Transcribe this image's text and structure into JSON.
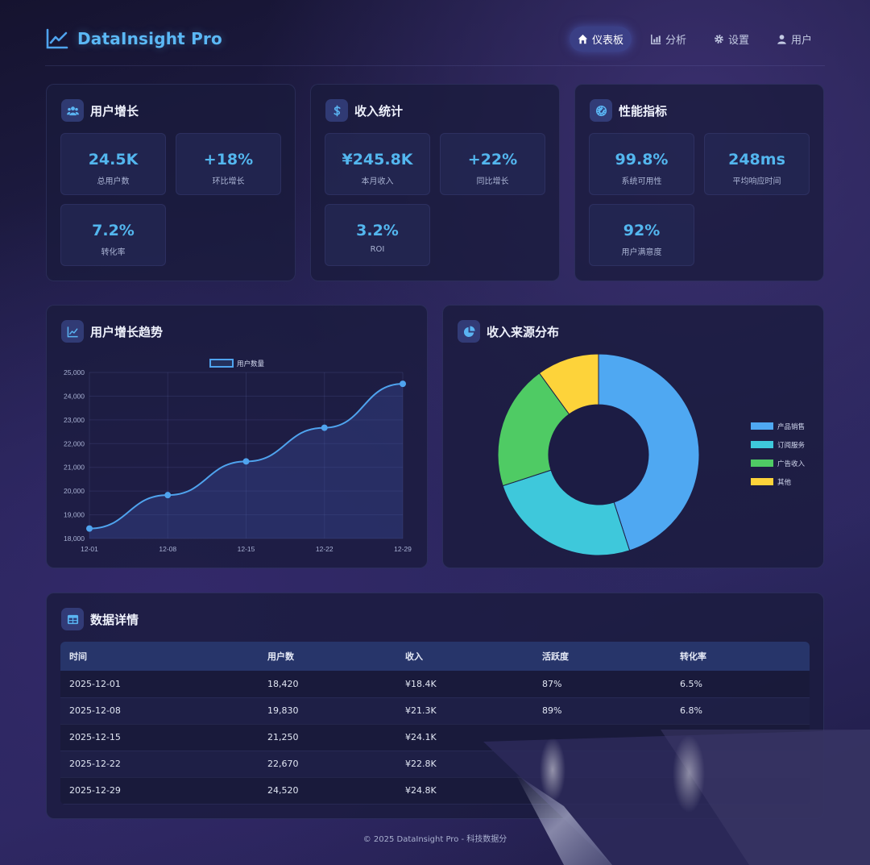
{
  "app": {
    "name": "DataInsight Pro"
  },
  "nav": [
    {
      "label": "仪表板",
      "icon": "home-icon",
      "active": true
    },
    {
      "label": "分析",
      "icon": "chart-bar-icon",
      "active": false
    },
    {
      "label": "设置",
      "icon": "gear-icon",
      "active": false
    },
    {
      "label": "用户",
      "icon": "user-icon",
      "active": false
    }
  ],
  "cards": {
    "user_growth": {
      "title": "用户增长",
      "icon": "users-icon",
      "stats": [
        {
          "value": "24.5K",
          "label": "总用户数"
        },
        {
          "value": "+18%",
          "label": "环比增长"
        },
        {
          "value": "7.2%",
          "label": "转化率"
        }
      ]
    },
    "revenue": {
      "title": "收入统计",
      "icon": "dollar-icon",
      "stats": [
        {
          "value": "¥245.8K",
          "label": "本月收入"
        },
        {
          "value": "+22%",
          "label": "同比增长"
        },
        {
          "value": "3.2%",
          "label": "ROI"
        }
      ]
    },
    "performance": {
      "title": "性能指标",
      "icon": "gauge-icon",
      "stats": [
        {
          "value": "99.8%",
          "label": "系统可用性"
        },
        {
          "value": "248ms",
          "label": "平均响应时间"
        },
        {
          "value": "92%",
          "label": "用户满意度"
        }
      ]
    }
  },
  "charts": {
    "line_title": "用户增长趋势",
    "pie_title": "收入来源分布"
  },
  "chart_data": [
    {
      "type": "line",
      "x": [
        "12-01",
        "12-08",
        "12-15",
        "12-22",
        "12-29"
      ],
      "series": [
        {
          "name": "用户数量",
          "values": [
            18420,
            19830,
            21250,
            22670,
            24520
          ],
          "color": "#4fa3ee"
        }
      ],
      "yticks": [
        "18,000",
        "19,000",
        "20,000",
        "21,000",
        "22,000",
        "23,000",
        "24,000",
        "25,000"
      ],
      "ylim": [
        18000,
        25000
      ],
      "grid": true,
      "legend": "top-center"
    },
    {
      "type": "pie",
      "categories": [
        "产品销售",
        "订阅服务",
        "广告收入",
        "其他"
      ],
      "values": [
        45,
        25,
        20,
        10
      ],
      "colors": [
        "#4fa8f2",
        "#3ec8db",
        "#4fcb64",
        "#fdd33a"
      ],
      "legend": "right"
    }
  ],
  "table": {
    "title": "数据详情",
    "icon": "table-icon",
    "columns": [
      "时间",
      "用户数",
      "收入",
      "活跃度",
      "转化率"
    ],
    "rows": [
      [
        "2025-12-01",
        "18,420",
        "¥18.4K",
        "87%",
        "6.5%"
      ],
      [
        "2025-12-08",
        "19,830",
        "¥21.3K",
        "89%",
        "6.8%"
      ],
      [
        "2025-12-15",
        "21,250",
        "¥24.1K",
        "",
        ""
      ],
      [
        "2025-12-22",
        "22,670",
        "¥22.8K",
        "",
        ""
      ],
      [
        "2025-12-29",
        "24,520",
        "¥24.8K",
        "",
        ""
      ]
    ]
  },
  "footer": "© 2025 DataInsight Pro - 科技数据分"
}
